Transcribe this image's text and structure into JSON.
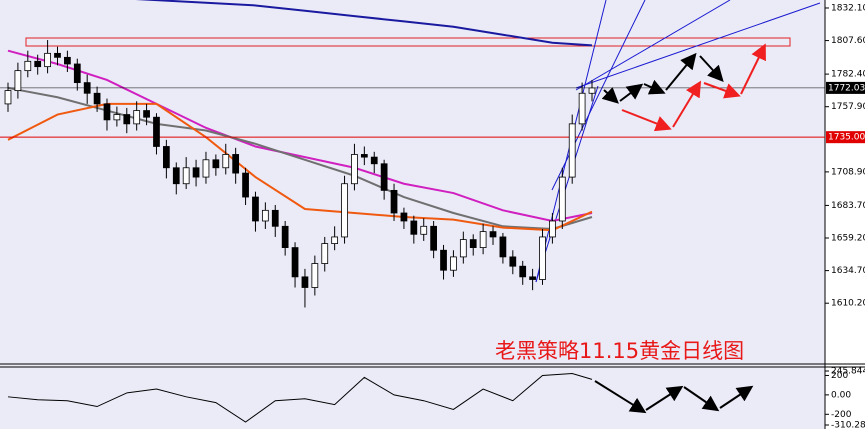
{
  "chart_data": [
    {
      "type": "candlestick",
      "title": "老黑策略11.15黄金日线图",
      "ylim": [
        1564.5,
        1838.1
      ],
      "yticks": [
        {
          "value": 1832.1,
          "label": "1832.10"
        },
        {
          "value": 1807.6,
          "label": "1807.60"
        },
        {
          "value": 1782.4,
          "label": "1782.40"
        },
        {
          "value": 1757.9,
          "label": "1757.90"
        },
        {
          "value": 1708.9,
          "label": "1708.90"
        },
        {
          "value": 1683.7,
          "label": "1683.70"
        },
        {
          "value": 1659.2,
          "label": "1659.20"
        },
        {
          "value": 1634.7,
          "label": "1634.70"
        },
        {
          "value": 1610.2,
          "label": "1610.20"
        }
      ],
      "open": [
        1760,
        1770,
        1785,
        1792,
        1788,
        1798,
        1795,
        1790,
        1776,
        1768,
        1760,
        1748,
        1752,
        1745,
        1755,
        1750,
        1728,
        1712,
        1700,
        1712,
        1705,
        1718,
        1712,
        1722,
        1708,
        1690,
        1672,
        1680,
        1668,
        1652,
        1630,
        1622,
        1640,
        1655,
        1660,
        1700,
        1722,
        1720,
        1715,
        1695,
        1678,
        1672,
        1662,
        1668,
        1650,
        1635,
        1645,
        1658,
        1652,
        1664,
        1660,
        1645,
        1638,
        1630,
        1628,
        1660,
        1672,
        1705,
        1745,
        1768
      ],
      "high": [
        1776,
        1791,
        1800,
        1797,
        1808,
        1803,
        1800,
        1794,
        1782,
        1773,
        1764,
        1758,
        1757,
        1762,
        1760,
        1753,
        1733,
        1716,
        1720,
        1718,
        1724,
        1722,
        1730,
        1727,
        1712,
        1694,
        1686,
        1684,
        1672,
        1656,
        1636,
        1646,
        1660,
        1668,
        1706,
        1730,
        1728,
        1724,
        1718,
        1700,
        1682,
        1676,
        1674,
        1672,
        1654,
        1650,
        1664,
        1662,
        1670,
        1668,
        1663,
        1650,
        1642,
        1636,
        1666,
        1678,
        1712,
        1752,
        1776,
        1778
      ],
      "low": [
        1754,
        1764,
        1780,
        1782,
        1783,
        1789,
        1784,
        1770,
        1760,
        1754,
        1740,
        1743,
        1738,
        1740,
        1744,
        1722,
        1704,
        1692,
        1696,
        1698,
        1700,
        1706,
        1707,
        1700,
        1684,
        1664,
        1666,
        1660,
        1646,
        1622,
        1607,
        1616,
        1634,
        1650,
        1655,
        1695,
        1714,
        1708,
        1688,
        1672,
        1666,
        1655,
        1657,
        1644,
        1628,
        1630,
        1640,
        1646,
        1647,
        1654,
        1640,
        1632,
        1624,
        1620,
        1624,
        1655,
        1666,
        1700,
        1740,
        1762
      ],
      "close": [
        1770,
        1785,
        1792,
        1788,
        1798,
        1795,
        1790,
        1776,
        1768,
        1760,
        1748,
        1752,
        1745,
        1755,
        1750,
        1728,
        1712,
        1700,
        1712,
        1705,
        1718,
        1712,
        1722,
        1708,
        1690,
        1672,
        1680,
        1668,
        1652,
        1630,
        1622,
        1640,
        1655,
        1660,
        1700,
        1722,
        1720,
        1715,
        1695,
        1678,
        1672,
        1662,
        1668,
        1650,
        1635,
        1645,
        1658,
        1652,
        1664,
        1660,
        1645,
        1638,
        1630,
        1628,
        1660,
        1672,
        1705,
        1745,
        1768,
        1772
      ],
      "up_color": "#ffffff",
      "down_color": "#000000",
      "lines": [
        {
          "color": "#1a1aa0",
          "x": [
            0,
            5,
            10,
            15,
            20,
            25,
            30,
            35,
            40,
            45,
            50,
            55,
            59
          ],
          "values": [
            1845,
            1843,
            1840,
            1838,
            1836,
            1834,
            1830,
            1826,
            1822,
            1818,
            1812,
            1806,
            1804
          ]
        },
        {
          "color": "#d020c0",
          "x": [
            0,
            5,
            10,
            15,
            20,
            25,
            30,
            35,
            40,
            45,
            50,
            55,
            59
          ],
          "values": [
            1800,
            1790,
            1778,
            1760,
            1742,
            1728,
            1720,
            1712,
            1700,
            1693,
            1680,
            1672,
            1678
          ]
        },
        {
          "color": "#707070",
          "x": [
            0,
            5,
            10,
            15,
            20,
            25,
            30,
            35,
            40,
            45,
            50,
            55,
            59
          ],
          "values": [
            1772,
            1765,
            1755,
            1745,
            1740,
            1730,
            1718,
            1706,
            1690,
            1678,
            1668,
            1666,
            1675
          ]
        },
        {
          "color": "#f05a10",
          "x": [
            0,
            5,
            10,
            15,
            20,
            25,
            30,
            35,
            40,
            45,
            50,
            55,
            59
          ],
          "values": [
            1733,
            1752,
            1760,
            1760,
            1735,
            1705,
            1681,
            1678,
            1675,
            1673,
            1667,
            1665,
            1679
          ]
        }
      ],
      "hlines": [
        {
          "value": 1735,
          "label": "1735.00",
          "color": "#e00000"
        },
        {
          "value": 1772.03,
          "label": "1772.03",
          "color": "#000000"
        }
      ]
    },
    {
      "type": "line",
      "ylim": [
        -310.281,
        245.8448
      ],
      "yticks": [
        245.8448,
        200,
        {
          "value": 0,
          "label": "0.00"
        },
        -200,
        -310.281
      ],
      "x": [
        0,
        3,
        6,
        9,
        12,
        15,
        18,
        21,
        24,
        27,
        30,
        33,
        36,
        39,
        42,
        45,
        48,
        51,
        54,
        57,
        59
      ],
      "values": [
        -20,
        -50,
        -60,
        -120,
        20,
        60,
        -20,
        -80,
        -280,
        -60,
        -40,
        -100,
        180,
        0,
        -60,
        -150,
        60,
        -60,
        200,
        220,
        160
      ],
      "color": "#000000"
    }
  ]
}
